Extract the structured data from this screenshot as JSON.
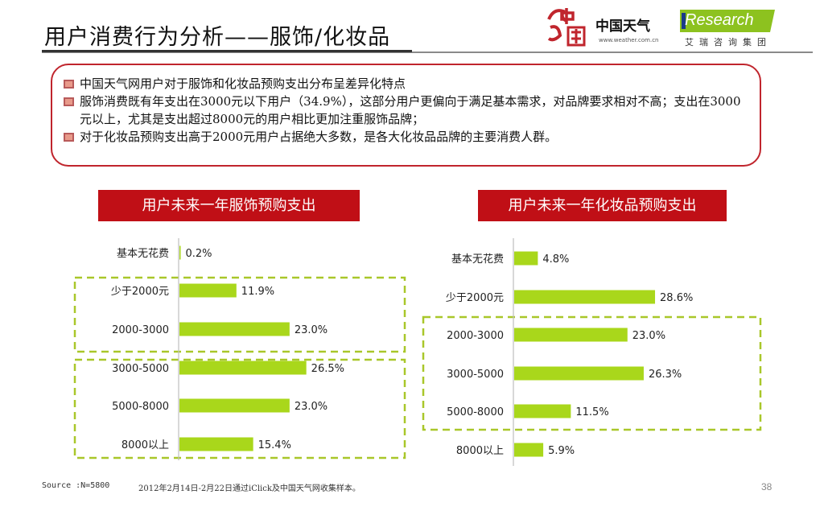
{
  "title": "用户消费行为分析——服饰/化妆品",
  "logos": {
    "weather_name": "中国天气",
    "weather_url": "www.weather.com.cn",
    "iresearch_name": "Research",
    "iresearch_sub": "艾瑞咨询集团"
  },
  "summary": {
    "bullets": [
      "中国天气网用户对于服饰和化妆品预购支出分布呈差异化特点",
      "服饰消费既有年支出在3000元以下用户（34.9%），这部分用户更偏向于满足基本需求，对品牌要求相对不高；支出在3000元以上，尤其是支出超过8000元的用户相比更加注重服饰品牌；",
      "对于化妆品预购支出高于2000元用户占据绝大多数，是各大化妆品品牌的主要消费人群。"
    ]
  },
  "colors": {
    "accent": "#c00f16",
    "bar": "#a9d71b",
    "dash": "#a9c72a",
    "box_border": "#c0252d"
  },
  "chart_data": [
    {
      "type": "bar",
      "title": "用户未来一年服饰预购支出",
      "categories": [
        "基本无花费",
        "少于2000元",
        "2000-3000",
        "3000-5000",
        "5000-8000",
        "8000以上"
      ],
      "values": [
        0.2,
        11.9,
        23.0,
        26.5,
        23.0,
        15.4
      ],
      "labels": [
        "0.2%",
        "11.9%",
        "23.0%",
        "26.5%",
        "23.0%",
        "15.4%"
      ],
      "unit": "%",
      "orientation": "horizontal",
      "grid": false
    },
    {
      "type": "bar",
      "title": "用户未来一年化妆品预购支出",
      "categories": [
        "基本无花费",
        "少于2000元",
        "2000-3000",
        "3000-5000",
        "5000-8000",
        "8000以上"
      ],
      "values": [
        4.8,
        28.6,
        23.0,
        26.3,
        11.5,
        5.9
      ],
      "labels": [
        "4.8%",
        "28.6%",
        "23.0%",
        "26.3%",
        "11.5%",
        "5.9%"
      ],
      "unit": "%",
      "orientation": "horizontal",
      "grid": false
    }
  ],
  "footer": {
    "source": "Source :N=5800",
    "note": "2012年2月14日-2月22日通过iClick及中国天气网收集样本。",
    "page": "38"
  }
}
